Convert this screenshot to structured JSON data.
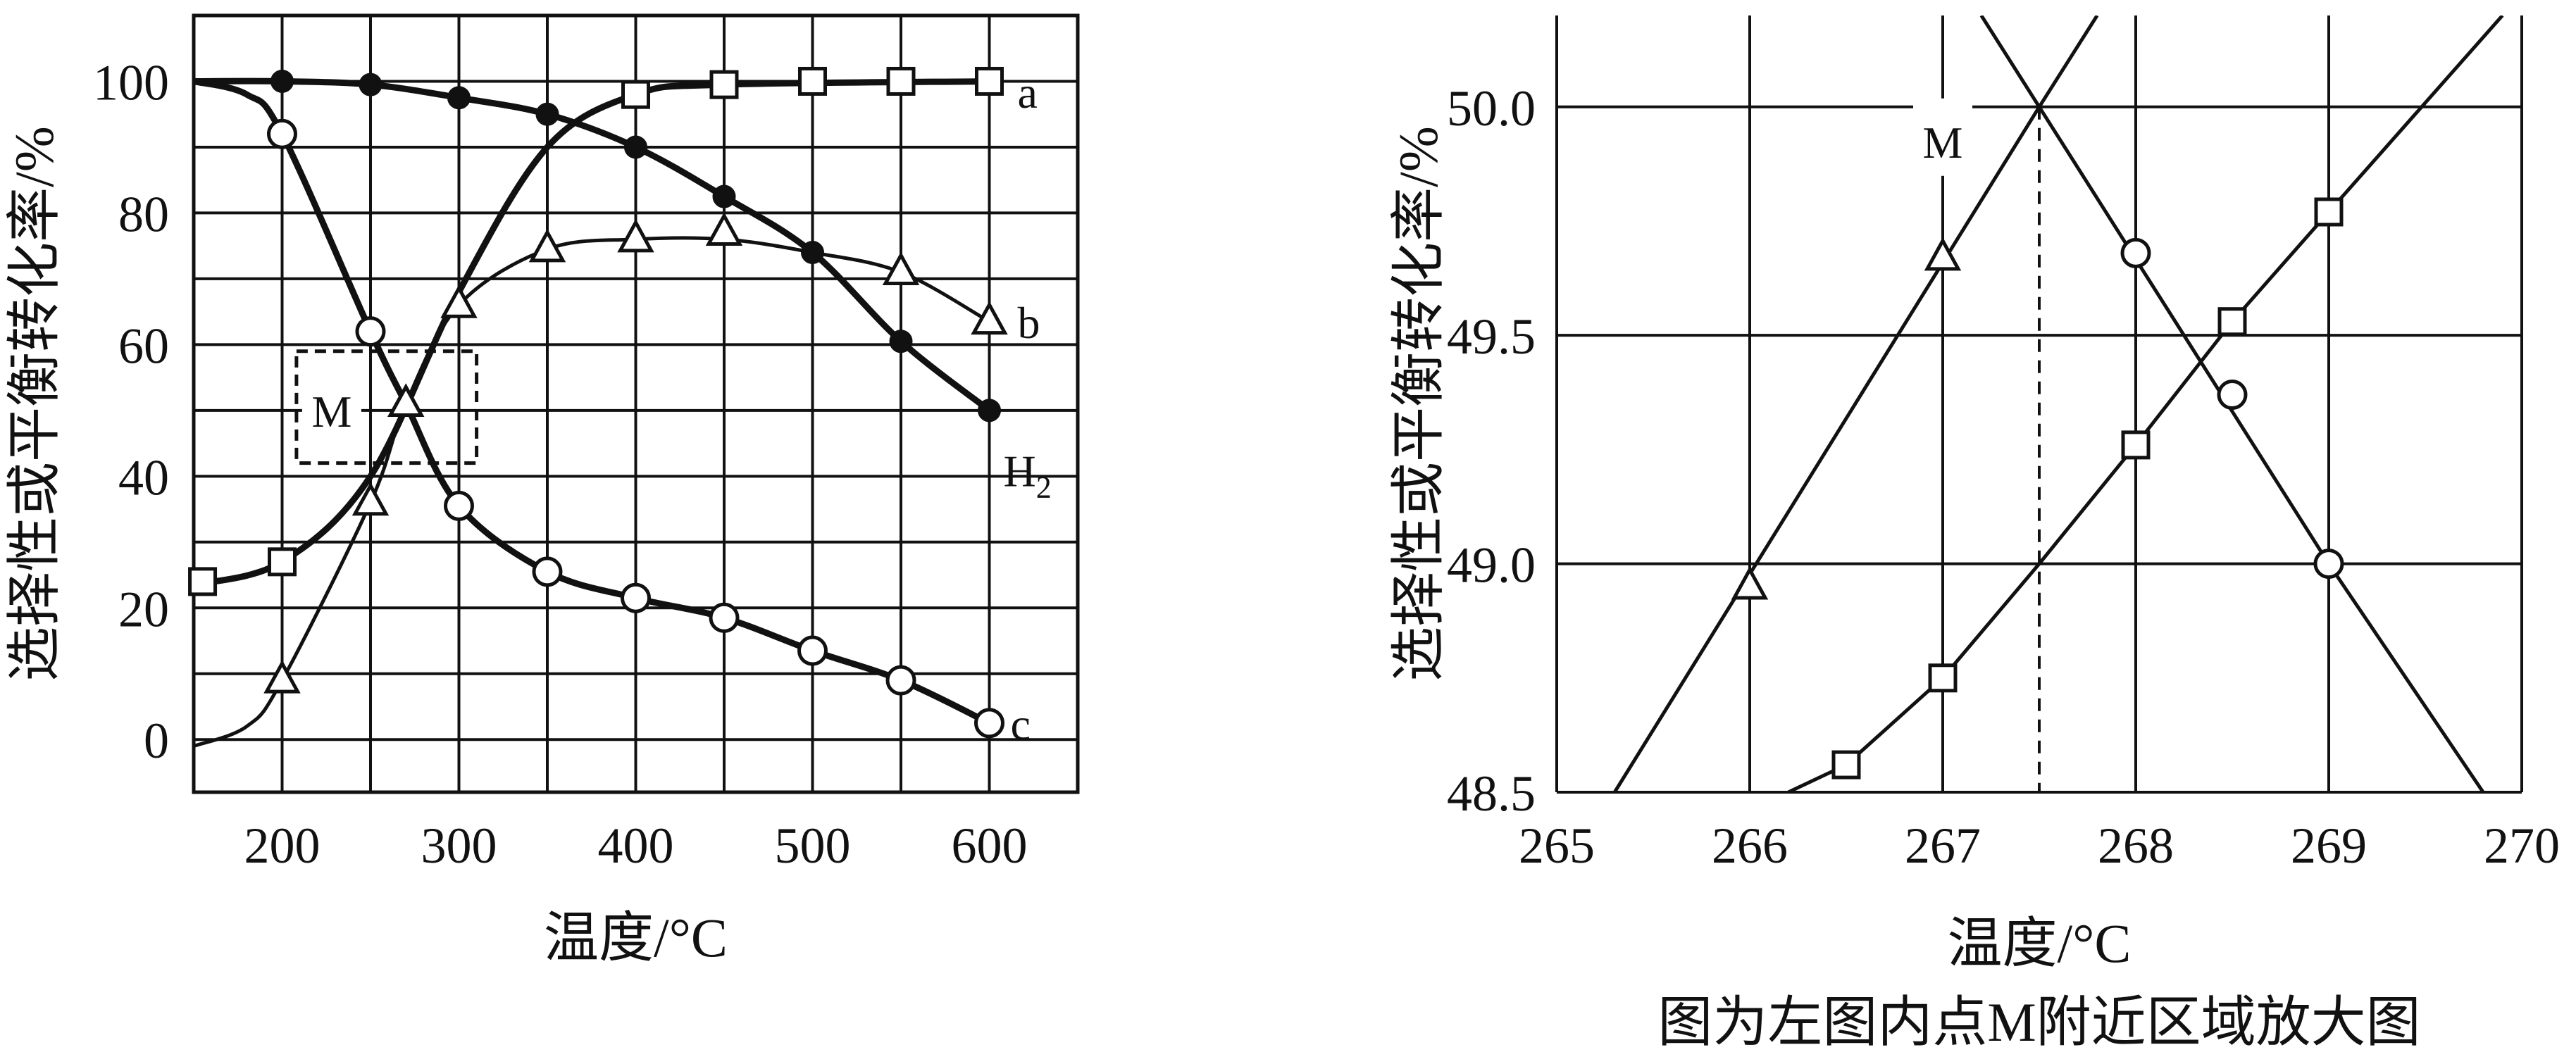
{
  "chart_data": [
    {
      "type": "line",
      "title": "",
      "xlabel": "温度/°C",
      "ylabel": "选择性或平衡转化率/%",
      "xlim": [
        150,
        650
      ],
      "ylim": [
        -8,
        110
      ],
      "xticks": [
        200,
        300,
        400,
        500,
        600
      ],
      "yticks": [
        0,
        20,
        40,
        60,
        80,
        100
      ],
      "x_grid_step": 50,
      "y_grid_step": 10,
      "grid": true,
      "series": [
        {
          "name": "a",
          "marker": "square",
          "points": [
            [
              155,
              24
            ],
            [
              200,
              27
            ],
            [
              400,
              98
            ],
            [
              450,
              99.5
            ],
            [
              500,
              100
            ],
            [
              550,
              100
            ],
            [
              600,
              100
            ]
          ],
          "curve": [
            [
              150,
              23.5
            ],
            [
              200,
              27
            ],
            [
              250,
              40
            ],
            [
              300,
              68
            ],
            [
              350,
              90
            ],
            [
              400,
              98
            ],
            [
              450,
              99.5
            ],
            [
              600,
              100
            ]
          ]
        },
        {
          "name": "b",
          "marker": "triangle",
          "points": [
            [
              200,
              9
            ],
            [
              250,
              36
            ],
            [
              270,
              51
            ],
            [
              300,
              66
            ],
            [
              350,
              74.5
            ],
            [
              400,
              76
            ],
            [
              450,
              77
            ],
            [
              550,
              71
            ],
            [
              600,
              63.5
            ]
          ],
          "curve": [
            [
              150,
              -1
            ],
            [
              180,
              2
            ],
            [
              200,
              9
            ],
            [
              250,
              36
            ],
            [
              270,
              51
            ],
            [
              300,
              66
            ],
            [
              350,
              74.5
            ],
            [
              400,
              76
            ],
            [
              450,
              76
            ],
            [
              500,
              74
            ],
            [
              550,
              71
            ],
            [
              600,
              63.5
            ]
          ]
        },
        {
          "name": "c",
          "marker": "circle",
          "points": [
            [
              200,
              92
            ],
            [
              250,
              62
            ],
            [
              300,
              35.5
            ],
            [
              350,
              25.5
            ],
            [
              400,
              21.5
            ],
            [
              450,
              18.5
            ],
            [
              500,
              13.5
            ],
            [
              550,
              9
            ],
            [
              600,
              2.5
            ]
          ],
          "curve": [
            [
              150,
              100
            ],
            [
              180,
              98
            ],
            [
              200,
              92
            ],
            [
              250,
              62
            ],
            [
              270,
              51
            ],
            [
              300,
              35.5
            ],
            [
              350,
              25.5
            ],
            [
              400,
              21.5
            ],
            [
              450,
              18.5
            ],
            [
              500,
              13.5
            ],
            [
              550,
              9
            ],
            [
              600,
              2.5
            ]
          ]
        },
        {
          "name": "H₂",
          "name_parts": [
            "H",
            "2"
          ],
          "marker": "filled-circle",
          "points": [
            [
              200,
              100
            ],
            [
              250,
              99.5
            ],
            [
              300,
              97.5
            ],
            [
              350,
              95
            ],
            [
              400,
              90
            ],
            [
              450,
              82.5
            ],
            [
              500,
              74
            ],
            [
              550,
              60.5
            ],
            [
              600,
              50
            ]
          ],
          "curve": [
            [
              150,
              100
            ],
            [
              200,
              100
            ],
            [
              250,
              99.5
            ],
            [
              300,
              97.5
            ],
            [
              350,
              95
            ],
            [
              400,
              90
            ],
            [
              450,
              82.5
            ],
            [
              500,
              74
            ],
            [
              550,
              60.5
            ],
            [
              600,
              50
            ]
          ]
        }
      ],
      "annotations": [
        {
          "text": "M",
          "box": {
            "x": [
              240,
              310
            ],
            "y": [
              42,
              59
            ]
          }
        }
      ]
    },
    {
      "type": "line",
      "title": "图为左图内点M附近区域放大图",
      "xlabel": "温度/°C",
      "ylabel": "选择性或平衡转化率/%",
      "xlim": [
        265,
        270
      ],
      "ylim": [
        48.5,
        50.2
      ],
      "xticks": [
        265,
        266,
        267,
        268,
        269,
        270
      ],
      "yticks": [
        "48.5",
        "49.0",
        "49.5",
        "50.0"
      ],
      "grid": true,
      "series": [
        {
          "name": "",
          "marker": "triangle",
          "points": [
            [
              266,
              48.95
            ],
            [
              267,
              49.67
            ]
          ],
          "curve": [
            [
              265.3,
              48.5
            ],
            [
              267.5,
              50.0
            ],
            [
              267.8,
              50.2
            ]
          ]
        },
        {
          "name": "",
          "marker": "circle",
          "points": [
            [
              268,
              49.68
            ],
            [
              268.5,
              49.37
            ],
            [
              269,
              49.0
            ]
          ],
          "curve": [
            [
              267.2,
              50.2
            ],
            [
              267.5,
              50.0
            ],
            [
              269,
              49.0
            ],
            [
              269.8,
              48.5
            ]
          ]
        },
        {
          "name": "",
          "marker": "square",
          "points": [
            [
              266.5,
              48.56
            ],
            [
              267,
              48.75
            ],
            [
              268,
              49.26
            ],
            [
              268.5,
              49.53
            ],
            [
              269,
              49.77
            ]
          ],
          "curve": [
            [
              266.2,
              48.5
            ],
            [
              266.5,
              48.56
            ],
            [
              267,
              48.75
            ],
            [
              267.5,
              49.0
            ],
            [
              268,
              49.26
            ],
            [
              268.5,
              49.53
            ],
            [
              269,
              49.77
            ],
            [
              269.9,
              50.2
            ]
          ]
        }
      ],
      "annotations": [
        {
          "text": "M",
          "point": [
            267.5,
            50.0
          ],
          "dashed_drop_to_x": true
        }
      ]
    }
  ]
}
